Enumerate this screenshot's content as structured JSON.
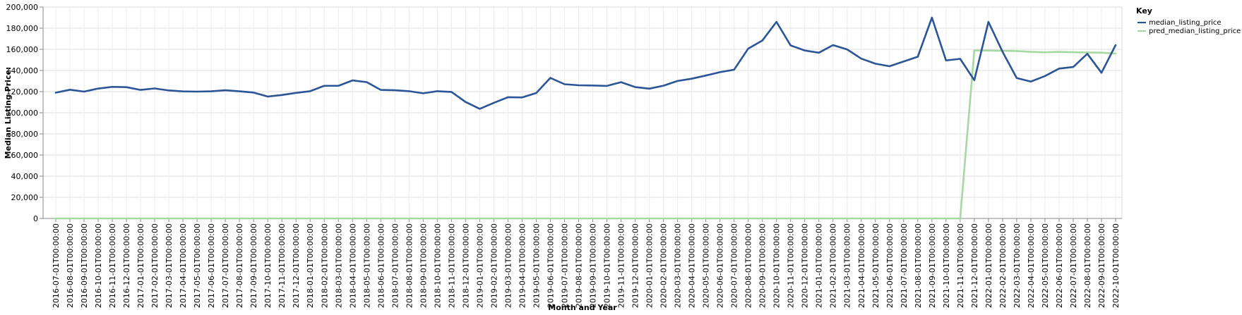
{
  "chart_data": {
    "type": "line",
    "xlabel": "Month and Year",
    "ylabel": "Median Listing Price:",
    "ylim": [
      0,
      200000
    ],
    "yticks": [
      0,
      20000,
      40000,
      60000,
      80000,
      100000,
      120000,
      140000,
      160000,
      180000,
      200000
    ],
    "ytick_labels": [
      "0",
      "20,000",
      "40,000",
      "60,000",
      "80,000",
      "100,000",
      "120,000",
      "140,000",
      "160,000",
      "180,000",
      "200,000"
    ],
    "grid": true,
    "legend": {
      "title": "Key",
      "position": "top-right"
    },
    "x": [
      "2016-07-01T00:00:00",
      "2016-08-01T00:00:00",
      "2016-09-01T00:00:00",
      "2016-10-01T00:00:00",
      "2016-11-01T00:00:00",
      "2016-12-01T00:00:00",
      "2017-01-01T00:00:00",
      "2017-02-01T00:00:00",
      "2017-03-01T00:00:00",
      "2017-04-01T00:00:00",
      "2017-05-01T00:00:00",
      "2017-06-01T00:00:00",
      "2017-07-01T00:00:00",
      "2017-08-01T00:00:00",
      "2017-09-01T00:00:00",
      "2017-10-01T00:00:00",
      "2017-11-01T00:00:00",
      "2017-12-01T00:00:00",
      "2018-01-01T00:00:00",
      "2018-02-01T00:00:00",
      "2018-03-01T00:00:00",
      "2018-04-01T00:00:00",
      "2018-05-01T00:00:00",
      "2018-06-01T00:00:00",
      "2018-07-01T00:00:00",
      "2018-08-01T00:00:00",
      "2018-09-01T00:00:00",
      "2018-10-01T00:00:00",
      "2018-11-01T00:00:00",
      "2018-12-01T00:00:00",
      "2019-01-01T00:00:00",
      "2019-02-01T00:00:00",
      "2019-03-01T00:00:00",
      "2019-04-01T00:00:00",
      "2019-05-01T00:00:00",
      "2019-06-01T00:00:00",
      "2019-07-01T00:00:00",
      "2019-08-01T00:00:00",
      "2019-09-01T00:00:00",
      "2019-10-01T00:00:00",
      "2019-11-01T00:00:00",
      "2019-12-01T00:00:00",
      "2020-01-01T00:00:00",
      "2020-02-01T00:00:00",
      "2020-03-01T00:00:00",
      "2020-04-01T00:00:00",
      "2020-05-01T00:00:00",
      "2020-06-01T00:00:00",
      "2020-07-01T00:00:00",
      "2020-08-01T00:00:00",
      "2020-09-01T00:00:00",
      "2020-10-01T00:00:00",
      "2020-11-01T00:00:00",
      "2020-12-01T00:00:00",
      "2021-01-01T00:00:00",
      "2021-02-01T00:00:00",
      "2021-03-01T00:00:00",
      "2021-04-01T00:00:00",
      "2021-05-01T00:00:00",
      "2021-06-01T00:00:00",
      "2021-07-01T00:00:00",
      "2021-08-01T00:00:00",
      "2021-09-01T00:00:00",
      "2021-10-01T00:00:00",
      "2021-11-01T00:00:00",
      "2021-12-01T00:00:00",
      "2022-01-01T00:00:00",
      "2022-02-01T00:00:00",
      "2022-03-01T00:00:00",
      "2022-04-01T00:00:00",
      "2022-05-01T00:00:00",
      "2022-06-01T00:00:00",
      "2022-07-01T00:00:00",
      "2022-08-01T00:00:00",
      "2022-09-01T00:00:00",
      "2022-10-01T00:00:00"
    ],
    "series": [
      {
        "name": "median_listing_price",
        "color": "#2b5597",
        "values": [
          119000,
          121800,
          120000,
          122900,
          124500,
          124200,
          121600,
          123000,
          121100,
          120200,
          120000,
          120300,
          121300,
          120300,
          119100,
          115300,
          116800,
          118800,
          120400,
          125500,
          125500,
          130600,
          129000,
          121600,
          121300,
          120400,
          118400,
          120400,
          119700,
          110200,
          103700,
          109400,
          114700,
          114500,
          118700,
          133000,
          127000,
          126000,
          125800,
          125400,
          128900,
          124300,
          122800,
          125600,
          130100,
          132200,
          135200,
          138400,
          140700,
          160700,
          168300,
          186000,
          163700,
          158900,
          156800,
          164000,
          159900,
          151200,
          146400,
          144000,
          148500,
          153000,
          190000,
          149500,
          151000,
          130800,
          186000,
          157700,
          132800,
          129500,
          134700,
          141800,
          143300,
          155800,
          137800,
          164000
        ]
      },
      {
        "name": "pred_median_listing_price",
        "color": "#a4d9a0",
        "values": [
          0,
          0,
          0,
          0,
          0,
          0,
          0,
          0,
          0,
          0,
          0,
          0,
          0,
          0,
          0,
          0,
          0,
          0,
          0,
          0,
          0,
          0,
          0,
          0,
          0,
          0,
          0,
          0,
          0,
          0,
          0,
          0,
          0,
          0,
          0,
          0,
          0,
          0,
          0,
          0,
          0,
          0,
          0,
          0,
          0,
          0,
          0,
          0,
          0,
          0,
          0,
          0,
          0,
          0,
          0,
          0,
          0,
          0,
          0,
          0,
          0,
          0,
          0,
          0,
          0,
          159000,
          158800,
          158600,
          158400,
          157600,
          157200,
          157600,
          157300,
          157000,
          156900,
          156000
        ]
      }
    ]
  }
}
